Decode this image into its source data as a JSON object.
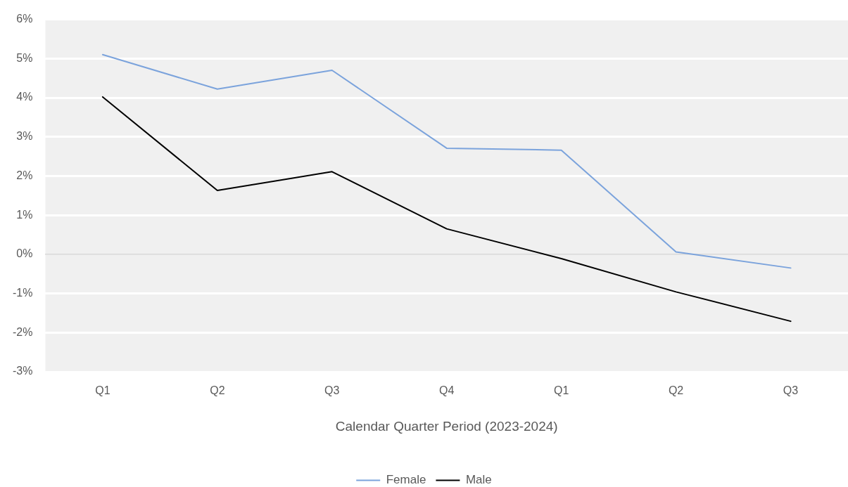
{
  "chart_data": {
    "type": "line",
    "xlabel": "Calendar Quarter Period (2023-2024)",
    "categories": [
      "Q1",
      "Q2",
      "Q3",
      "Q4",
      "Q1",
      "Q2",
      "Q3"
    ],
    "series": [
      {
        "name": "Female",
        "color": "#7ba3dc",
        "values": [
          5.1,
          4.22,
          4.7,
          2.71,
          2.66,
          0.06,
          -0.35
        ]
      },
      {
        "name": "Male",
        "color": "#000000",
        "values": [
          4.02,
          1.63,
          2.11,
          0.65,
          -0.11,
          -0.96,
          -1.71
        ]
      }
    ],
    "ylim": [
      -3,
      6
    ],
    "yticks": [
      {
        "value": -3,
        "label": "-3%"
      },
      {
        "value": -2,
        "label": "-2%"
      },
      {
        "value": -1,
        "label": "-1%"
      },
      {
        "value": 0,
        "label": "0%"
      },
      {
        "value": 1,
        "label": "1%"
      },
      {
        "value": 2,
        "label": "2%"
      },
      {
        "value": 3,
        "label": "3%"
      },
      {
        "value": 4,
        "label": "4%"
      },
      {
        "value": 5,
        "label": "5%"
      },
      {
        "value": 6,
        "label": "6%"
      }
    ],
    "grid": "y",
    "legend": "bottom",
    "marker": "none",
    "line_style": "solid"
  }
}
